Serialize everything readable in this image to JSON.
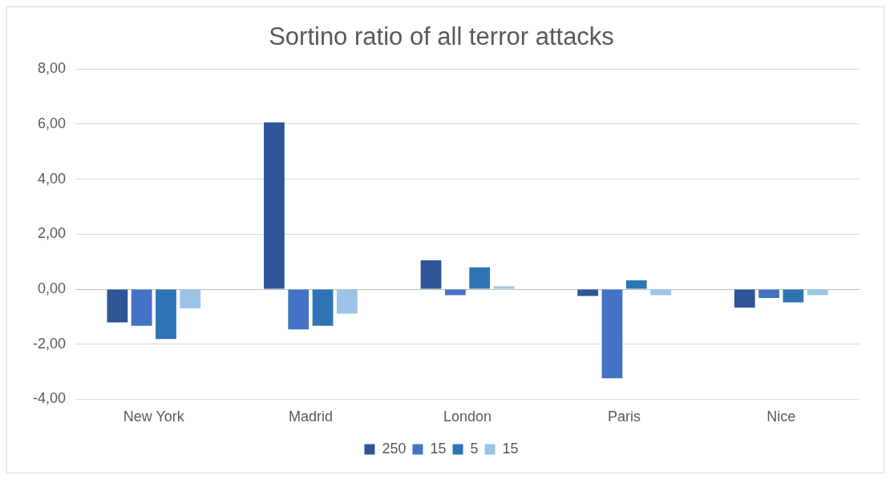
{
  "chart_data": {
    "type": "bar",
    "title": "Sortino ratio of all terror attacks",
    "categories": [
      "New York",
      "Madrid",
      "London",
      "Paris",
      "Nice"
    ],
    "series": [
      {
        "name": "250",
        "color": "#2f5597",
        "values": [
          -1.21,
          6.06,
          1.05,
          -0.25,
          -0.67
        ]
      },
      {
        "name": "15",
        "color": "#4472c4",
        "values": [
          -1.33,
          -1.46,
          -0.22,
          -3.24,
          -0.32
        ]
      },
      {
        "name": "5",
        "color": "#2e75b6",
        "values": [
          -1.81,
          -1.33,
          0.79,
          0.32,
          -0.48
        ]
      },
      {
        "name": "15",
        "color": "#9dc3e6",
        "values": [
          -0.7,
          -0.89,
          0.1,
          -0.22,
          -0.22
        ]
      }
    ],
    "ylim": [
      -4,
      8
    ],
    "yticks": [
      {
        "value": -4,
        "label": "-4,00"
      },
      {
        "value": -2,
        "label": "-2,00"
      },
      {
        "value": 0,
        "label": "0,00"
      },
      {
        "value": 2,
        "label": "2,00"
      },
      {
        "value": 4,
        "label": "4,00"
      },
      {
        "value": 6,
        "label": "6,00"
      },
      {
        "value": 8,
        "label": "8,00"
      }
    ],
    "grid": "y",
    "legend": "bottom"
  }
}
